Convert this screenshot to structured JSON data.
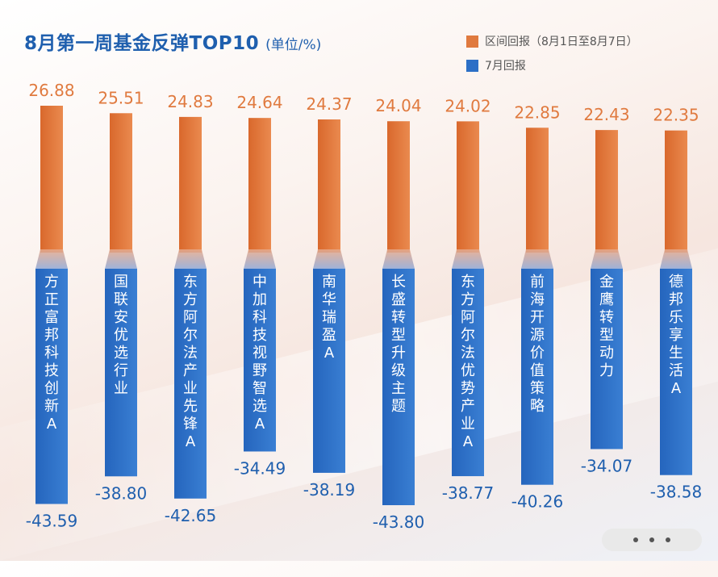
{
  "title": "8月第一周基金反弹TOP10",
  "unit": "(单位/%)",
  "legend": {
    "orange_label": "区间回报（8月1日至8月7日）",
    "blue_label": "7月回报"
  },
  "colors": {
    "orange": "#e07a3f",
    "blue": "#2c6fc6",
    "orange_text": "#e07a3f",
    "blue_text": "#1f5fae"
  },
  "chart_data": {
    "type": "bar",
    "categories": [
      "方正富邦科技创新A",
      "国联安优选行业",
      "东方阿尔法产业先锋A",
      "中加科技视野智选A",
      "南华瑞盈A",
      "长盛转型升级主题",
      "东方阿尔法优势产业A",
      "前海开源价值策略",
      "金鹰转型动力",
      "德邦乐享生活A"
    ],
    "series": [
      {
        "name": "区间回报（8月1日至8月7日）",
        "values": [
          26.88,
          25.51,
          24.83,
          24.64,
          24.37,
          24.04,
          24.02,
          22.85,
          22.43,
          22.35
        ]
      },
      {
        "name": "7月回报",
        "values": [
          -43.59,
          -38.8,
          -42.65,
          -34.49,
          -38.19,
          -43.8,
          -38.77,
          -40.26,
          -34.07,
          -38.58
        ]
      }
    ],
    "value_labels_pos": [
      "26.88",
      "25.51",
      "24.83",
      "24.64",
      "24.37",
      "24.04",
      "24.02",
      "22.85",
      "22.43",
      "22.35"
    ],
    "value_labels_neg": [
      "-43.59",
      "-38.80",
      "-42.65",
      "-34.49",
      "-38.19",
      "-43.80",
      "-38.77",
      "-40.26",
      "-34.07",
      "-38.58"
    ],
    "xlabel": "",
    "ylabel": ""
  }
}
